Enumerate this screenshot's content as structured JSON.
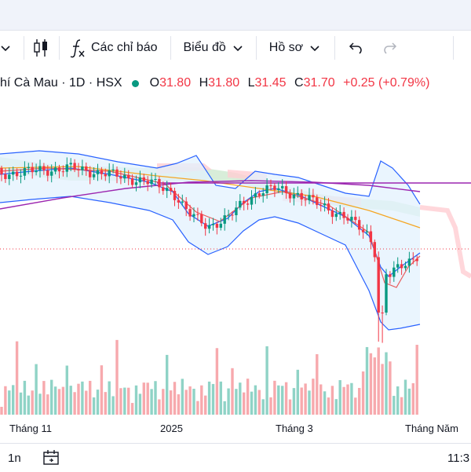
{
  "toolbar": {
    "indicators_label": "Các chỉ báo",
    "chart_type_label": "Biểu đồ",
    "profile_label": "Hồ sơ"
  },
  "legend": {
    "symbol": "hí Cà Mau · 1D · HSX",
    "o_key": "O",
    "o_val": "31.80",
    "h_key": "H",
    "h_val": "31.80",
    "l_key": "L",
    "l_val": "31.45",
    "c_key": "C",
    "c_val": "31.70",
    "change": "+0.25 (+0.79%)"
  },
  "colors": {
    "up": "#089981",
    "down": "#f23645",
    "vol_up": "#8fd3c6",
    "vol_down": "#f7a9ad",
    "bb_fill": "#e3f2fd",
    "bb_line": "#2962ff",
    "ma_purple": "#9c27b0",
    "ma_orange": "#f5a623",
    "ma_red": "#e85c5c",
    "cloud_green": "#c8e6c9",
    "cloud_red": "#ffcdd2"
  },
  "chart_data": {
    "type": "candlestick",
    "x_ticks": [
      "Tháng 11",
      "2025",
      "Tháng 3",
      "Tháng Năm"
    ],
    "horizontal_line_value": 31.8
  },
  "bottom": {
    "range": "1n",
    "clock": "11:3"
  }
}
